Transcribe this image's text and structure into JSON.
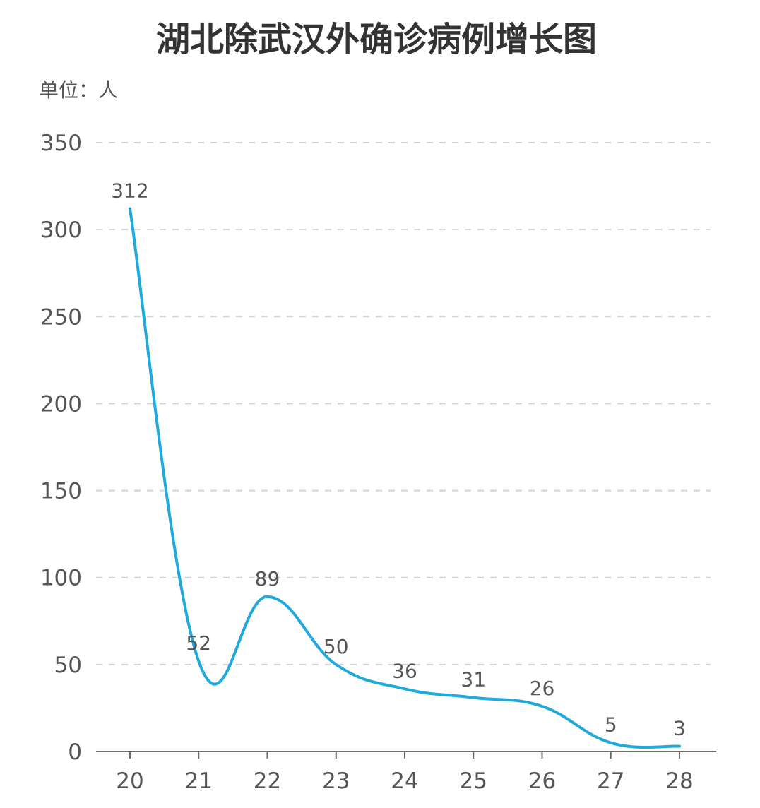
{
  "chart_data": {
    "type": "line",
    "title": "湖北除武汉外确诊病例增长图",
    "unit_label": "单位：人",
    "categories": [
      "20",
      "21",
      "22",
      "23",
      "24",
      "25",
      "26",
      "27",
      "28"
    ],
    "series": [
      {
        "values": [
          312,
          52,
          89,
          50,
          36,
          31,
          26,
          5,
          3
        ]
      }
    ],
    "ylim": [
      0,
      350
    ],
    "yticks": [
      0,
      50,
      100,
      150,
      200,
      250,
      300,
      350
    ],
    "grid": true,
    "smooth": true,
    "line_color": "#1fa9dd"
  }
}
